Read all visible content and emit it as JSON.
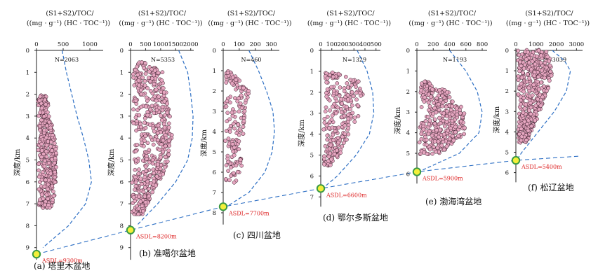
{
  "chart_data": {
    "type": "scatter",
    "ylabel": "深度/km",
    "title_line1": "(S1+S2)/TOC/",
    "title_line2": "((mg · g⁻¹) (HC · TOC⁻¹))",
    "asdl_line": "dashed line connecting ASDL points across basins",
    "panels": [
      {
        "caption": "(a) 塔里木盆地",
        "n_label": "N=2063",
        "xticks": [
          0,
          500,
          1000
        ],
        "xlim": [
          0,
          1250
        ],
        "yticks": [
          0,
          1,
          2,
          3,
          4,
          5,
          6,
          7,
          8,
          9
        ],
        "ylim": [
          0,
          9.3
        ],
        "asdl_depth": 9.3,
        "asdl_label": "ASDL=9300m",
        "data_cloud": [
          [
            2,
            150
          ],
          [
            2.5,
            170
          ],
          [
            3,
            190
          ],
          [
            3.5,
            250
          ],
          [
            4,
            300
          ],
          [
            4.5,
            320
          ],
          [
            5,
            340
          ],
          [
            5.5,
            330
          ],
          [
            6,
            320
          ],
          [
            6.5,
            300
          ],
          [
            7,
            250
          ],
          [
            7.2,
            220
          ]
        ],
        "envelope": [
          [
            0,
            480
          ],
          [
            1,
            560
          ],
          [
            2,
            660
          ],
          [
            3,
            760
          ],
          [
            4,
            880
          ],
          [
            5,
            980
          ],
          [
            6,
            1030
          ],
          [
            7,
            920
          ],
          [
            8,
            600
          ],
          [
            9,
            120
          ]
        ]
      },
      {
        "caption": "(b) 准噶尔盆地",
        "n_label": "N=5353",
        "xticks": [
          0,
          500,
          1000,
          1500,
          2000
        ],
        "xlim": [
          0,
          2100
        ],
        "yticks": [
          0,
          1,
          2,
          3,
          4,
          5,
          6,
          7,
          8,
          9
        ],
        "ylim": [
          0,
          9.3
        ],
        "asdl_depth": 8.2,
        "asdl_label": "ASDL=8200m",
        "data_cloud": [
          [
            0.5,
            400
          ],
          [
            1,
            1000
          ],
          [
            2,
            1150
          ],
          [
            3,
            1250
          ],
          [
            4,
            1300
          ],
          [
            5,
            1200
          ],
          [
            6,
            900
          ],
          [
            7,
            500
          ],
          [
            7.5,
            300
          ]
        ],
        "envelope": [
          [
            0,
            1600
          ],
          [
            1,
            1900
          ],
          [
            2,
            2000
          ],
          [
            3,
            2080
          ],
          [
            4,
            2050
          ],
          [
            5,
            1900
          ],
          [
            6,
            1500
          ],
          [
            7,
            900
          ],
          [
            8,
            200
          ]
        ]
      },
      {
        "caption": "(c) 四川盆地",
        "n_label": "N=460",
        "xticks": [
          0,
          100,
          200,
          300
        ],
        "xlim": [
          0,
          350
        ],
        "yticks": [
          0,
          1,
          2,
          3,
          4,
          5,
          6,
          7,
          8
        ],
        "ylim": [
          0,
          8.3
        ],
        "asdl_depth": 7.7,
        "asdl_label": "ASDL=7700m",
        "data_cloud": [
          [
            1,
            30
          ],
          [
            2,
            150
          ],
          [
            3,
            130
          ],
          [
            4,
            110
          ],
          [
            5,
            90
          ],
          [
            6,
            110
          ],
          [
            6.5,
            70
          ]
        ],
        "envelope": [
          [
            0,
            160
          ],
          [
            1,
            220
          ],
          [
            2,
            270
          ],
          [
            3,
            310
          ],
          [
            4,
            320
          ],
          [
            5,
            305
          ],
          [
            6,
            260
          ],
          [
            7,
            160
          ],
          [
            7.7,
            20
          ]
        ]
      },
      {
        "caption": "(d) 鄂尔多斯盆地",
        "n_label": "N=1329",
        "xticks": [
          0,
          100,
          200,
          300,
          400,
          500
        ],
        "xlim": [
          0,
          540
        ],
        "yticks": [
          0,
          1,
          2,
          3,
          4,
          5,
          6,
          7
        ],
        "ylim": [
          0,
          7.2
        ],
        "asdl_depth": 6.6,
        "asdl_label": "ASDL=6600m",
        "data_cloud": [
          [
            1,
            60
          ],
          [
            1.5,
            350
          ],
          [
            2,
            360
          ],
          [
            3,
            330
          ],
          [
            4,
            250
          ],
          [
            5,
            150
          ],
          [
            5.5,
            60
          ]
        ],
        "envelope": [
          [
            0,
            330
          ],
          [
            1,
            420
          ],
          [
            2,
            470
          ],
          [
            3,
            480
          ],
          [
            4,
            440
          ],
          [
            5,
            320
          ],
          [
            6,
            150
          ],
          [
            6.6,
            15
          ]
        ]
      },
      {
        "caption": "(e) 渤海湾盆地",
        "n_label": "N=1193",
        "xticks": [
          0,
          200,
          400,
          600,
          800
        ],
        "xlim": [
          0,
          860
        ],
        "yticks": [
          0,
          1,
          2,
          3,
          4,
          5,
          6
        ],
        "ylim": [
          0,
          6.2
        ],
        "asdl_depth": 5.9,
        "asdl_label": "ASDL=5900m",
        "data_cloud": [
          [
            1.5,
            80
          ],
          [
            2,
            350
          ],
          [
            2.5,
            450
          ],
          [
            3,
            550
          ],
          [
            3.5,
            600
          ],
          [
            4,
            560
          ],
          [
            4.5,
            450
          ],
          [
            5,
            250
          ]
        ],
        "envelope": [
          [
            0,
            400
          ],
          [
            1,
            600
          ],
          [
            2,
            740
          ],
          [
            3,
            800
          ],
          [
            4,
            760
          ],
          [
            5,
            520
          ],
          [
            5.9,
            20
          ]
        ]
      },
      {
        "caption": "(f) 松辽盆地",
        "n_label": "N=3039",
        "xticks": [
          0,
          1000,
          2000,
          3000
        ],
        "xlim": [
          0,
          3300
        ],
        "yticks": [
          0,
          1,
          2,
          3,
          4,
          5,
          6
        ],
        "ylim": [
          0,
          6.2
        ],
        "asdl_depth": 5.4,
        "asdl_label": "ASDL=5400m",
        "data_cloud": [
          [
            0,
            1400
          ],
          [
            0.5,
            1600
          ],
          [
            1,
            1700
          ],
          [
            1.5,
            1600
          ],
          [
            2,
            1500
          ],
          [
            3,
            1100
          ],
          [
            4,
            700
          ],
          [
            4.5,
            400
          ]
        ],
        "envelope": [
          [
            0,
            1800
          ],
          [
            0.5,
            2400
          ],
          [
            1,
            2700
          ],
          [
            2,
            2500
          ],
          [
            3,
            1900
          ],
          [
            4,
            1100
          ],
          [
            5,
            300
          ],
          [
            5.4,
            20
          ]
        ]
      }
    ]
  }
}
